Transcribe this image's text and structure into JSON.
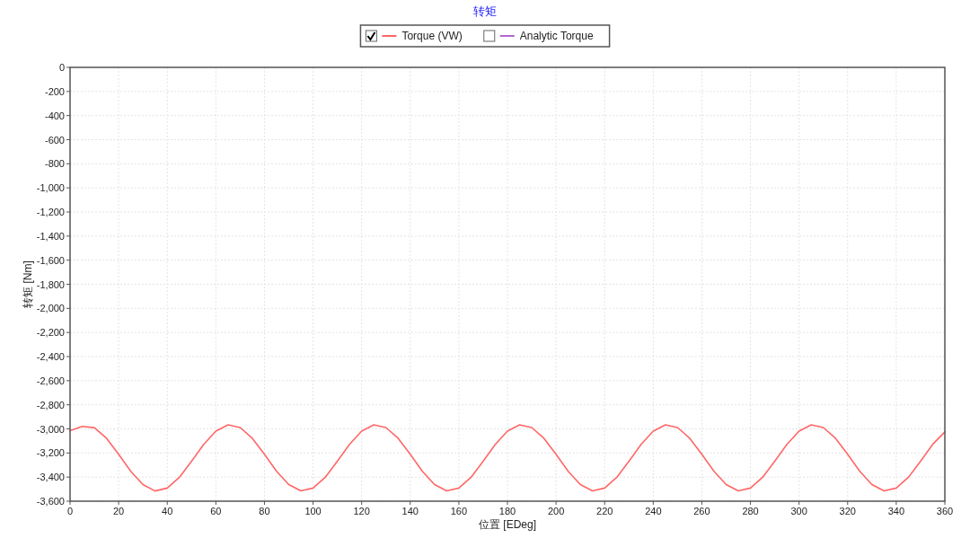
{
  "chart_data": {
    "type": "line",
    "title": "转矩",
    "xlabel": "位置 [EDeg]",
    "ylabel": "转矩 [Nm]",
    "x": [
      0,
      5,
      10,
      15,
      20,
      25,
      30,
      35,
      40,
      45,
      50,
      55,
      60,
      65,
      70,
      75,
      80,
      85,
      90,
      95,
      100,
      105,
      110,
      115,
      120,
      125,
      130,
      135,
      140,
      145,
      150,
      155,
      160,
      165,
      170,
      175,
      180,
      185,
      190,
      195,
      200,
      205,
      210,
      215,
      220,
      225,
      230,
      235,
      240,
      245,
      250,
      255,
      260,
      265,
      270,
      275,
      280,
      285,
      290,
      295,
      300,
      305,
      310,
      315,
      320,
      325,
      330,
      335,
      340,
      345,
      350,
      355,
      360
    ],
    "series": [
      {
        "name": "Torque (VW)",
        "color": "#ff6666",
        "values": [
          -3015,
          -2980,
          -2990,
          -3078,
          -3211,
          -3352,
          -3462,
          -3515,
          -3491,
          -3402,
          -3269,
          -3128,
          -3018,
          -2966,
          -2989,
          -3078,
          -3211,
          -3352,
          -3462,
          -3514,
          -3491,
          -3402,
          -3269,
          -3128,
          -3018,
          -2966,
          -2989,
          -3078,
          -3211,
          -3352,
          -3462,
          -3514,
          -3491,
          -3402,
          -3269,
          -3128,
          -3018,
          -2966,
          -2989,
          -3078,
          -3211,
          -3352,
          -3462,
          -3514,
          -3491,
          -3402,
          -3269,
          -3128,
          -3018,
          -2966,
          -2989,
          -3078,
          -3211,
          -3352,
          -3462,
          -3514,
          -3491,
          -3402,
          -3269,
          -3128,
          -3018,
          -2966,
          -2989,
          -3078,
          -3211,
          -3352,
          -3462,
          -3514,
          -3491,
          -3402,
          -3269,
          -3128,
          -3025
        ]
      },
      {
        "name": "Analytic Torque",
        "color": "#b266cc",
        "values": [
          null,
          null,
          null,
          null,
          null,
          null,
          null,
          null,
          null,
          null,
          null,
          null,
          null,
          null,
          null,
          null,
          null,
          null,
          null,
          null,
          null,
          null,
          null,
          null,
          null,
          null,
          null,
          null,
          null,
          null,
          null,
          null,
          null,
          null,
          null,
          null,
          null,
          null,
          null,
          null,
          null,
          null,
          null,
          null,
          null,
          null,
          null,
          null,
          null,
          null,
          null,
          null,
          null,
          null,
          null,
          null,
          null,
          null,
          null,
          null,
          null,
          null,
          null,
          null,
          null,
          null,
          null,
          null,
          null,
          null,
          null,
          null,
          null
        ]
      }
    ],
    "xlim": [
      0,
      360
    ],
    "xticks": [
      0,
      20,
      40,
      60,
      80,
      100,
      120,
      140,
      160,
      180,
      200,
      220,
      240,
      260,
      280,
      300,
      320,
      340,
      360
    ],
    "ylim": [
      -3600,
      0
    ],
    "yticks": [
      0,
      -200,
      -400,
      -600,
      -800,
      {
        "value": -1000,
        "label": "-1,000"
      },
      {
        "value": -1200,
        "label": "-1,200"
      },
      {
        "value": -1400,
        "label": "-1,400"
      },
      {
        "value": -1600,
        "label": "-1,600"
      },
      {
        "value": -1800,
        "label": "-1,800"
      },
      {
        "value": -2000,
        "label": "-2,000"
      },
      {
        "value": -2200,
        "label": "-2,200"
      },
      {
        "value": -2400,
        "label": "-2,400"
      },
      {
        "value": -2600,
        "label": "-2,600"
      },
      {
        "value": -2800,
        "label": "-2,800"
      },
      {
        "value": -3000,
        "label": "-3,000"
      },
      {
        "value": -3200,
        "label": "-3,200"
      },
      {
        "value": -3400,
        "label": "-3,400"
      },
      {
        "value": -3600,
        "label": "-3,600"
      }
    ],
    "grid": true,
    "legend": "top",
    "marker": "none",
    "line_style": "solid"
  }
}
